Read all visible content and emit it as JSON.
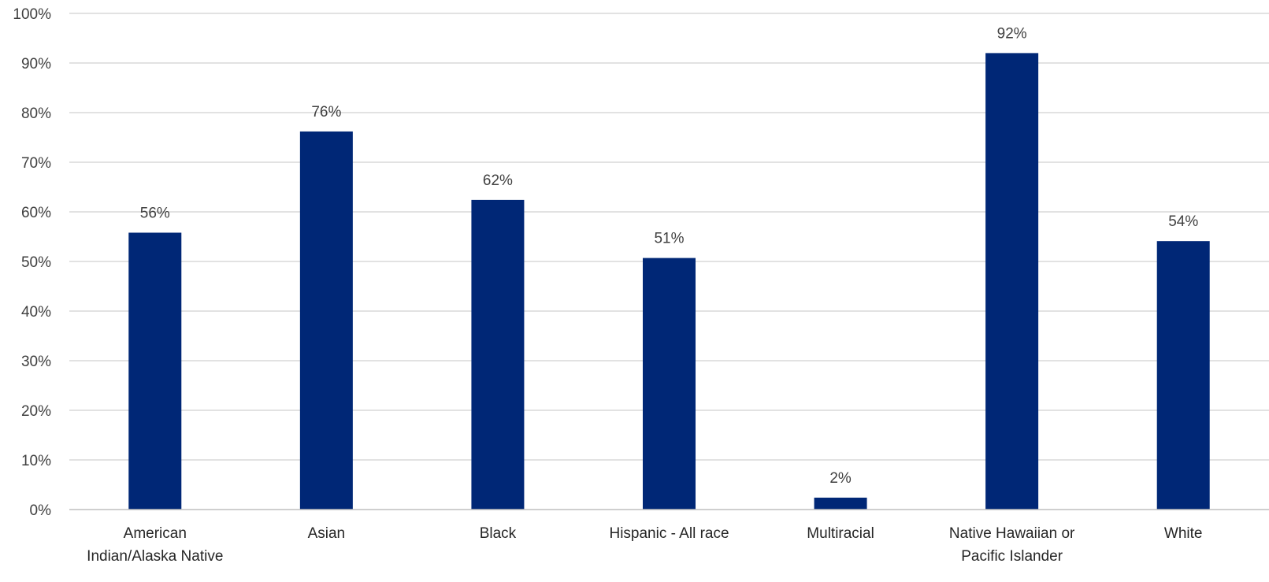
{
  "chart_data": {
    "type": "bar",
    "title": "",
    "xlabel": "",
    "ylabel": "",
    "categories": [
      [
        "American",
        "Indian/Alaska Native"
      ],
      [
        "Asian"
      ],
      [
        "Black"
      ],
      [
        "Hispanic - All race"
      ],
      [
        "Multiracial"
      ],
      [
        "Native Hawaiian or",
        "Pacific Islander"
      ],
      [
        "White"
      ]
    ],
    "values": [
      0.558,
      0.762,
      0.624,
      0.507,
      0.024,
      0.92,
      0.541
    ],
    "data_labels": [
      "56%",
      "76%",
      "62%",
      "51%",
      "2%",
      "92%",
      "54%"
    ],
    "ylim": [
      0,
      1
    ],
    "yticks": [
      "0%",
      "10%",
      "20%",
      "30%",
      "40%",
      "50%",
      "60%",
      "70%",
      "80%",
      "90%",
      "100%"
    ],
    "grid": true,
    "legend": "none",
    "bar_color": "#002776"
  }
}
